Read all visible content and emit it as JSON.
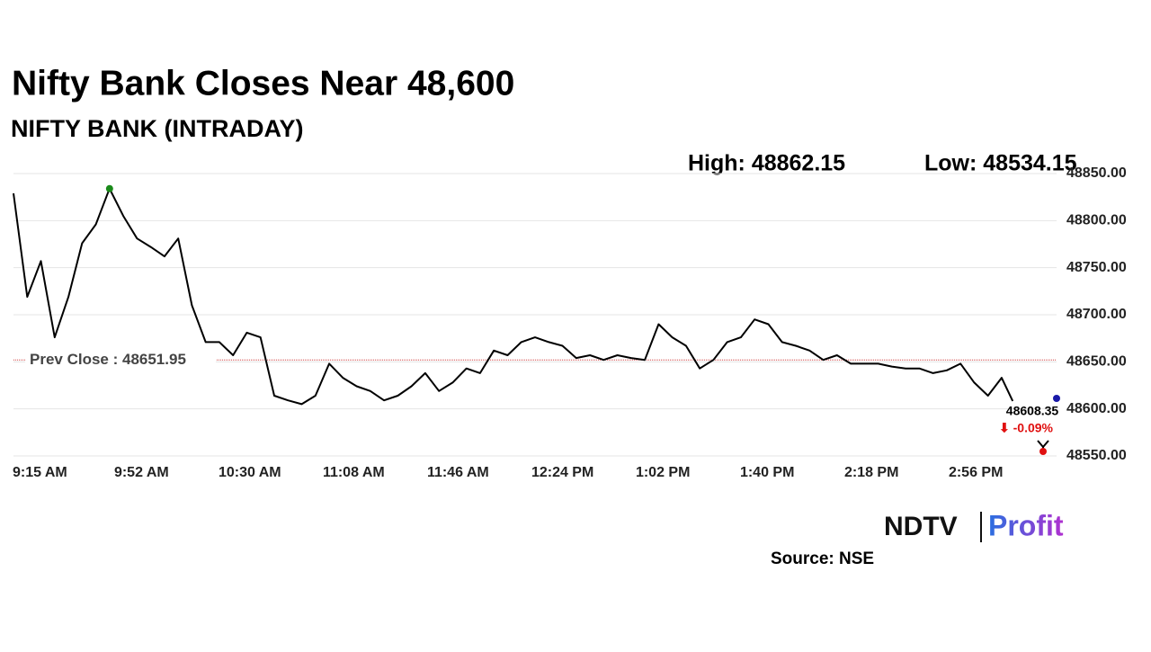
{
  "chart_data": {
    "type": "line",
    "title": "Nifty Bank Closes Near 48,600",
    "subtitle": "NIFTY BANK (INTRADAY)",
    "high_text": "High: 48862.15",
    "low_text": "Low: 48534.15",
    "prev_close": 48651.95,
    "prev_close_label": "Prev Close : 48651.95",
    "last_label": "48608.35",
    "change_label": "⬇ -0.09%",
    "source": "Source: NSE",
    "logo_left": "NDTV",
    "logo_right": "Profit",
    "color": "#000000",
    "x": [
      "9:15 AM",
      "9:20 AM",
      "9:25 AM",
      "9:30 AM",
      "9:35 AM",
      "9:40 AM",
      "9:45 AM",
      "9:50 AM",
      "9:55 AM",
      "10:00 AM",
      "10:05 AM",
      "10:10 AM",
      "10:15 AM",
      "10:20 AM",
      "10:25 AM",
      "10:30 AM",
      "10:35 AM",
      "10:40 AM",
      "10:45 AM",
      "10:50 AM",
      "10:55 AM",
      "11:00 AM",
      "11:05 AM",
      "11:10 AM",
      "11:15 AM",
      "11:20 AM",
      "11:25 AM",
      "11:30 AM",
      "11:35 AM",
      "11:40 AM",
      "11:45 AM",
      "11:50 AM",
      "11:55 AM",
      "12:00 PM",
      "12:05 PM",
      "12:10 PM",
      "12:15 PM",
      "12:20 PM",
      "12:25 PM",
      "12:30 PM",
      "12:35 PM",
      "12:40 PM",
      "12:45 PM",
      "12:50 PM",
      "12:55 PM",
      "1:00 PM",
      "1:05 PM",
      "1:10 PM",
      "1:15 PM",
      "1:20 PM",
      "1:25 PM",
      "1:30 PM",
      "1:35 PM",
      "1:40 PM",
      "1:45 PM",
      "1:50 PM",
      "1:55 PM",
      "2:00 PM",
      "2:05 PM",
      "2:10 PM",
      "2:15 PM",
      "2:20 PM",
      "2:25 PM",
      "2:30 PM",
      "2:35 PM",
      "2:40 PM",
      "2:45 PM",
      "2:50 PM",
      "2:55 PM",
      "3:00 PM",
      "3:05 PM",
      "3:10 PM",
      "3:15 PM",
      "3:19 PM"
    ],
    "values": [
      48829,
      48719,
      48757,
      48676,
      48719,
      48776,
      48796,
      48834,
      48805,
      48781,
      48772,
      48762,
      48781,
      48710,
      48671,
      48671,
      48657,
      48681,
      48676,
      48614,
      48609,
      48605,
      48614,
      48648,
      48633,
      48624,
      48619,
      48609,
      48614,
      48624,
      48638,
      48619,
      48628,
      48643,
      48638,
      48662,
      48657,
      48671,
      48676,
      48671,
      48667,
      48654,
      48657,
      48652,
      48657,
      48654,
      48652,
      48690,
      48676,
      48667,
      48643,
      48652,
      48671,
      48676,
      48695,
      48690,
      48671,
      48667,
      48662,
      48652,
      48657,
      48648,
      48648,
      48648,
      48645,
      48643,
      48643,
      48638,
      48641,
      48648,
      48628,
      48614,
      48633,
      48608.35
    ],
    "xlim": [
      "9:15 AM",
      "3:35 PM"
    ],
    "xticks": [
      "9:15 AM",
      "9:52 AM",
      "10:30 AM",
      "11:08 AM",
      "11:46 AM",
      "12:24 PM",
      "1:02 PM",
      "1:40 PM",
      "2:18 PM",
      "2:56 PM"
    ],
    "ylim": [
      48550,
      48850
    ],
    "yticks": [
      {
        "value": 48550,
        "label": "48550.00"
      },
      {
        "value": 48600,
        "label": "48600.00"
      },
      {
        "value": 48650,
        "label": "48650.00"
      },
      {
        "value": 48700,
        "label": "48700.00"
      },
      {
        "value": 48750,
        "label": "48750.00"
      },
      {
        "value": 48800,
        "label": "48800.00"
      },
      {
        "value": 48850,
        "label": "48850.00"
      }
    ],
    "grid": true
  }
}
